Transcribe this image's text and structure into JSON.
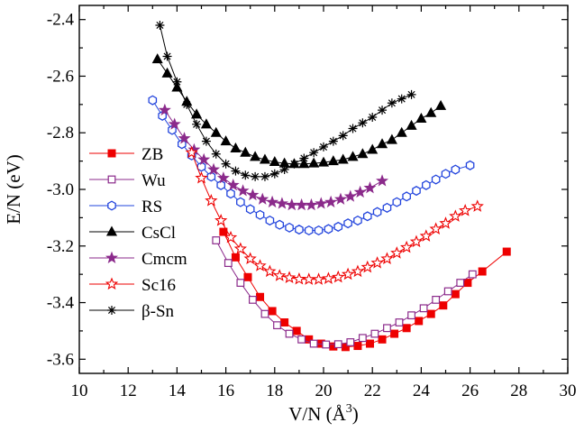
{
  "chart_data": {
    "type": "scatter",
    "title": "",
    "xlabel": "V/N (Å",
    "xlabel_sup": "3",
    "xlabel_close": ")",
    "ylabel": "E/N (eV)",
    "xlim": [
      10,
      30
    ],
    "ylim": [
      -3.65,
      -2.35
    ],
    "xticks": [
      10,
      12,
      14,
      16,
      18,
      20,
      22,
      24,
      26,
      28,
      30
    ],
    "yticks": [
      -3.6,
      -3.4,
      -3.2,
      -3.0,
      -2.8,
      -2.6,
      -2.4
    ],
    "xtick_labels": [
      "10",
      "12",
      "14",
      "16",
      "18",
      "20",
      "22",
      "24",
      "26",
      "28",
      "30"
    ],
    "ytick_labels": [
      "-3.6",
      "-3.4",
      "-3.2",
      "-3.0",
      "-2.8",
      "-2.6",
      "-2.4"
    ],
    "grid": false,
    "legend_position": "left-lower",
    "series": [
      {
        "name": "ZB",
        "marker": "square-filled",
        "color": "#ee0000",
        "x": [
          15.9,
          16.4,
          16.9,
          17.4,
          17.9,
          18.4,
          18.9,
          19.4,
          19.9,
          20.4,
          20.9,
          21.4,
          21.9,
          22.4,
          22.9,
          23.4,
          23.9,
          24.4,
          24.9,
          25.4,
          25.9,
          26.5,
          27.5
        ],
        "y": [
          -3.15,
          -3.24,
          -3.31,
          -3.38,
          -3.43,
          -3.47,
          -3.5,
          -3.53,
          -3.545,
          -3.555,
          -3.557,
          -3.553,
          -3.545,
          -3.53,
          -3.51,
          -3.49,
          -3.465,
          -3.44,
          -3.41,
          -3.37,
          -3.33,
          -3.29,
          -3.22
        ]
      },
      {
        "name": "Wu",
        "marker": "square-open",
        "color": "#8b2a8b",
        "x": [
          15.6,
          16.1,
          16.6,
          17.1,
          17.6,
          18.1,
          18.6,
          19.1,
          19.6,
          20.1,
          20.6,
          21.1,
          21.6,
          22.1,
          22.6,
          23.1,
          23.6,
          24.1,
          24.6,
          25.1,
          25.6,
          26.1
        ],
        "y": [
          -3.18,
          -3.26,
          -3.33,
          -3.39,
          -3.44,
          -3.48,
          -3.51,
          -3.53,
          -3.545,
          -3.548,
          -3.547,
          -3.54,
          -3.525,
          -3.51,
          -3.49,
          -3.47,
          -3.445,
          -3.42,
          -3.39,
          -3.36,
          -3.33,
          -3.3
        ]
      },
      {
        "name": "RS",
        "marker": "hexagon-open",
        "color": "#2244dd",
        "x": [
          13.0,
          13.4,
          13.8,
          14.2,
          14.6,
          15.0,
          15.4,
          15.8,
          16.2,
          16.6,
          17.0,
          17.4,
          17.8,
          18.2,
          18.6,
          19.0,
          19.4,
          19.8,
          20.2,
          20.6,
          21.0,
          21.4,
          21.8,
          22.2,
          22.6,
          23.0,
          23.4,
          23.8,
          24.2,
          24.6,
          25.0,
          25.4,
          26.0
        ],
        "y": [
          -2.685,
          -2.74,
          -2.79,
          -2.84,
          -2.88,
          -2.92,
          -2.955,
          -2.985,
          -3.015,
          -3.045,
          -3.07,
          -3.09,
          -3.11,
          -3.125,
          -3.135,
          -3.142,
          -3.145,
          -3.145,
          -3.14,
          -3.132,
          -3.12,
          -3.11,
          -3.095,
          -3.08,
          -3.065,
          -3.045,
          -3.025,
          -3.005,
          -2.985,
          -2.965,
          -2.945,
          -2.93,
          -2.915
        ]
      },
      {
        "name": "CsCl",
        "marker": "triangle-filled",
        "color": "#000000",
        "x": [
          13.2,
          13.6,
          14.0,
          14.4,
          14.8,
          15.2,
          15.6,
          16.0,
          16.4,
          16.8,
          17.2,
          17.6,
          18.0,
          18.4,
          18.8,
          19.2,
          19.6,
          20.0,
          20.4,
          20.8,
          21.2,
          21.6,
          22.0,
          22.4,
          22.8,
          23.2,
          23.6,
          24.0,
          24.4,
          24.8
        ],
        "y": [
          -2.54,
          -2.59,
          -2.64,
          -2.69,
          -2.735,
          -2.77,
          -2.8,
          -2.83,
          -2.855,
          -2.87,
          -2.885,
          -2.895,
          -2.903,
          -2.908,
          -2.91,
          -2.91,
          -2.908,
          -2.905,
          -2.9,
          -2.895,
          -2.885,
          -2.875,
          -2.86,
          -2.84,
          -2.825,
          -2.8,
          -2.775,
          -2.75,
          -2.73,
          -2.705
        ]
      },
      {
        "name": "Cmcm",
        "marker": "star-filled",
        "color": "#8b2a8b",
        "x": [
          13.5,
          13.9,
          14.3,
          14.7,
          15.1,
          15.5,
          15.9,
          16.3,
          16.7,
          17.1,
          17.5,
          17.9,
          18.3,
          18.7,
          19.1,
          19.5,
          19.9,
          20.3,
          20.7,
          21.1,
          21.5,
          21.9,
          22.4
        ],
        "y": [
          -2.72,
          -2.77,
          -2.82,
          -2.86,
          -2.895,
          -2.93,
          -2.96,
          -2.985,
          -3.005,
          -3.02,
          -3.035,
          -3.045,
          -3.05,
          -3.055,
          -3.055,
          -3.055,
          -3.05,
          -3.045,
          -3.035,
          -3.025,
          -3.01,
          -2.995,
          -2.97
        ]
      },
      {
        "name": "Sc16",
        "marker": "star-open",
        "color": "#ee0000",
        "x": [
          14.6,
          15.0,
          15.4,
          15.8,
          16.2,
          16.6,
          17.0,
          17.4,
          17.8,
          18.2,
          18.6,
          19.0,
          19.4,
          19.8,
          20.2,
          20.6,
          21.0,
          21.4,
          21.8,
          22.2,
          22.6,
          23.0,
          23.4,
          23.8,
          24.2,
          24.6,
          25.0,
          25.4,
          25.8,
          26.3
        ],
        "y": [
          -2.87,
          -2.96,
          -3.04,
          -3.11,
          -3.17,
          -3.21,
          -3.245,
          -3.27,
          -3.29,
          -3.305,
          -3.312,
          -3.317,
          -3.318,
          -3.318,
          -3.315,
          -3.31,
          -3.3,
          -3.29,
          -3.275,
          -3.26,
          -3.245,
          -3.225,
          -3.205,
          -3.185,
          -3.165,
          -3.14,
          -3.12,
          -3.095,
          -3.075,
          -3.06
        ]
      },
      {
        "name": "β-Sn",
        "marker": "asterisk",
        "color": "#000000",
        "x": [
          13.3,
          13.6,
          14.0,
          14.4,
          14.8,
          15.2,
          15.6,
          16.0,
          16.4,
          16.8,
          17.2,
          17.6,
          18.0,
          18.4,
          18.8,
          19.2,
          19.6,
          20.0,
          20.4,
          20.8,
          21.2,
          21.6,
          22.0,
          22.4,
          22.8,
          23.2,
          23.6
        ],
        "y": [
          -2.42,
          -2.53,
          -2.62,
          -2.7,
          -2.77,
          -2.83,
          -2.875,
          -2.91,
          -2.935,
          -2.95,
          -2.955,
          -2.955,
          -2.945,
          -2.93,
          -2.91,
          -2.89,
          -2.87,
          -2.85,
          -2.83,
          -2.81,
          -2.785,
          -2.765,
          -2.745,
          -2.72,
          -2.695,
          -2.68,
          -2.665
        ]
      }
    ]
  }
}
